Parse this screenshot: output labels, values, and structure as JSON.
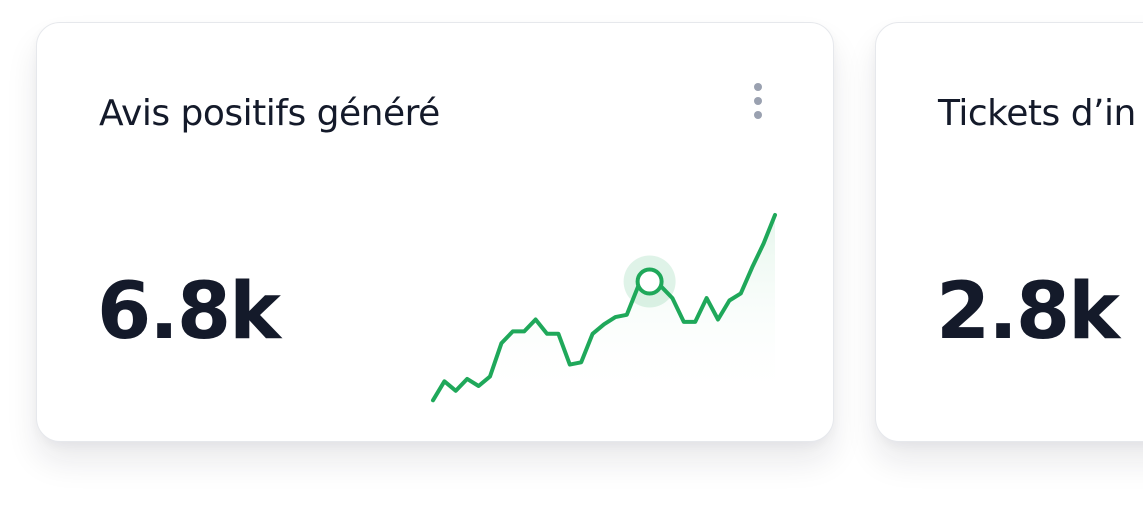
{
  "cards": [
    {
      "title": "Avis positifs généré",
      "value": "6.8k",
      "menu_icon": "more-vertical-icon",
      "sparkline": {
        "type": "line",
        "color": "#1fa85a",
        "fill_color": "#e9f7ef",
        "values": [
          2,
          10,
          6,
          11,
          8,
          12,
          26,
          31,
          31,
          36,
          30,
          30,
          17,
          18,
          30,
          34,
          37,
          38,
          50,
          52,
          50,
          45,
          35,
          35,
          45,
          36,
          44,
          47,
          58,
          68,
          80
        ],
        "highlight_index": 19
      }
    },
    {
      "title": "Tickets d’in",
      "value": "2.8k"
    }
  ]
}
